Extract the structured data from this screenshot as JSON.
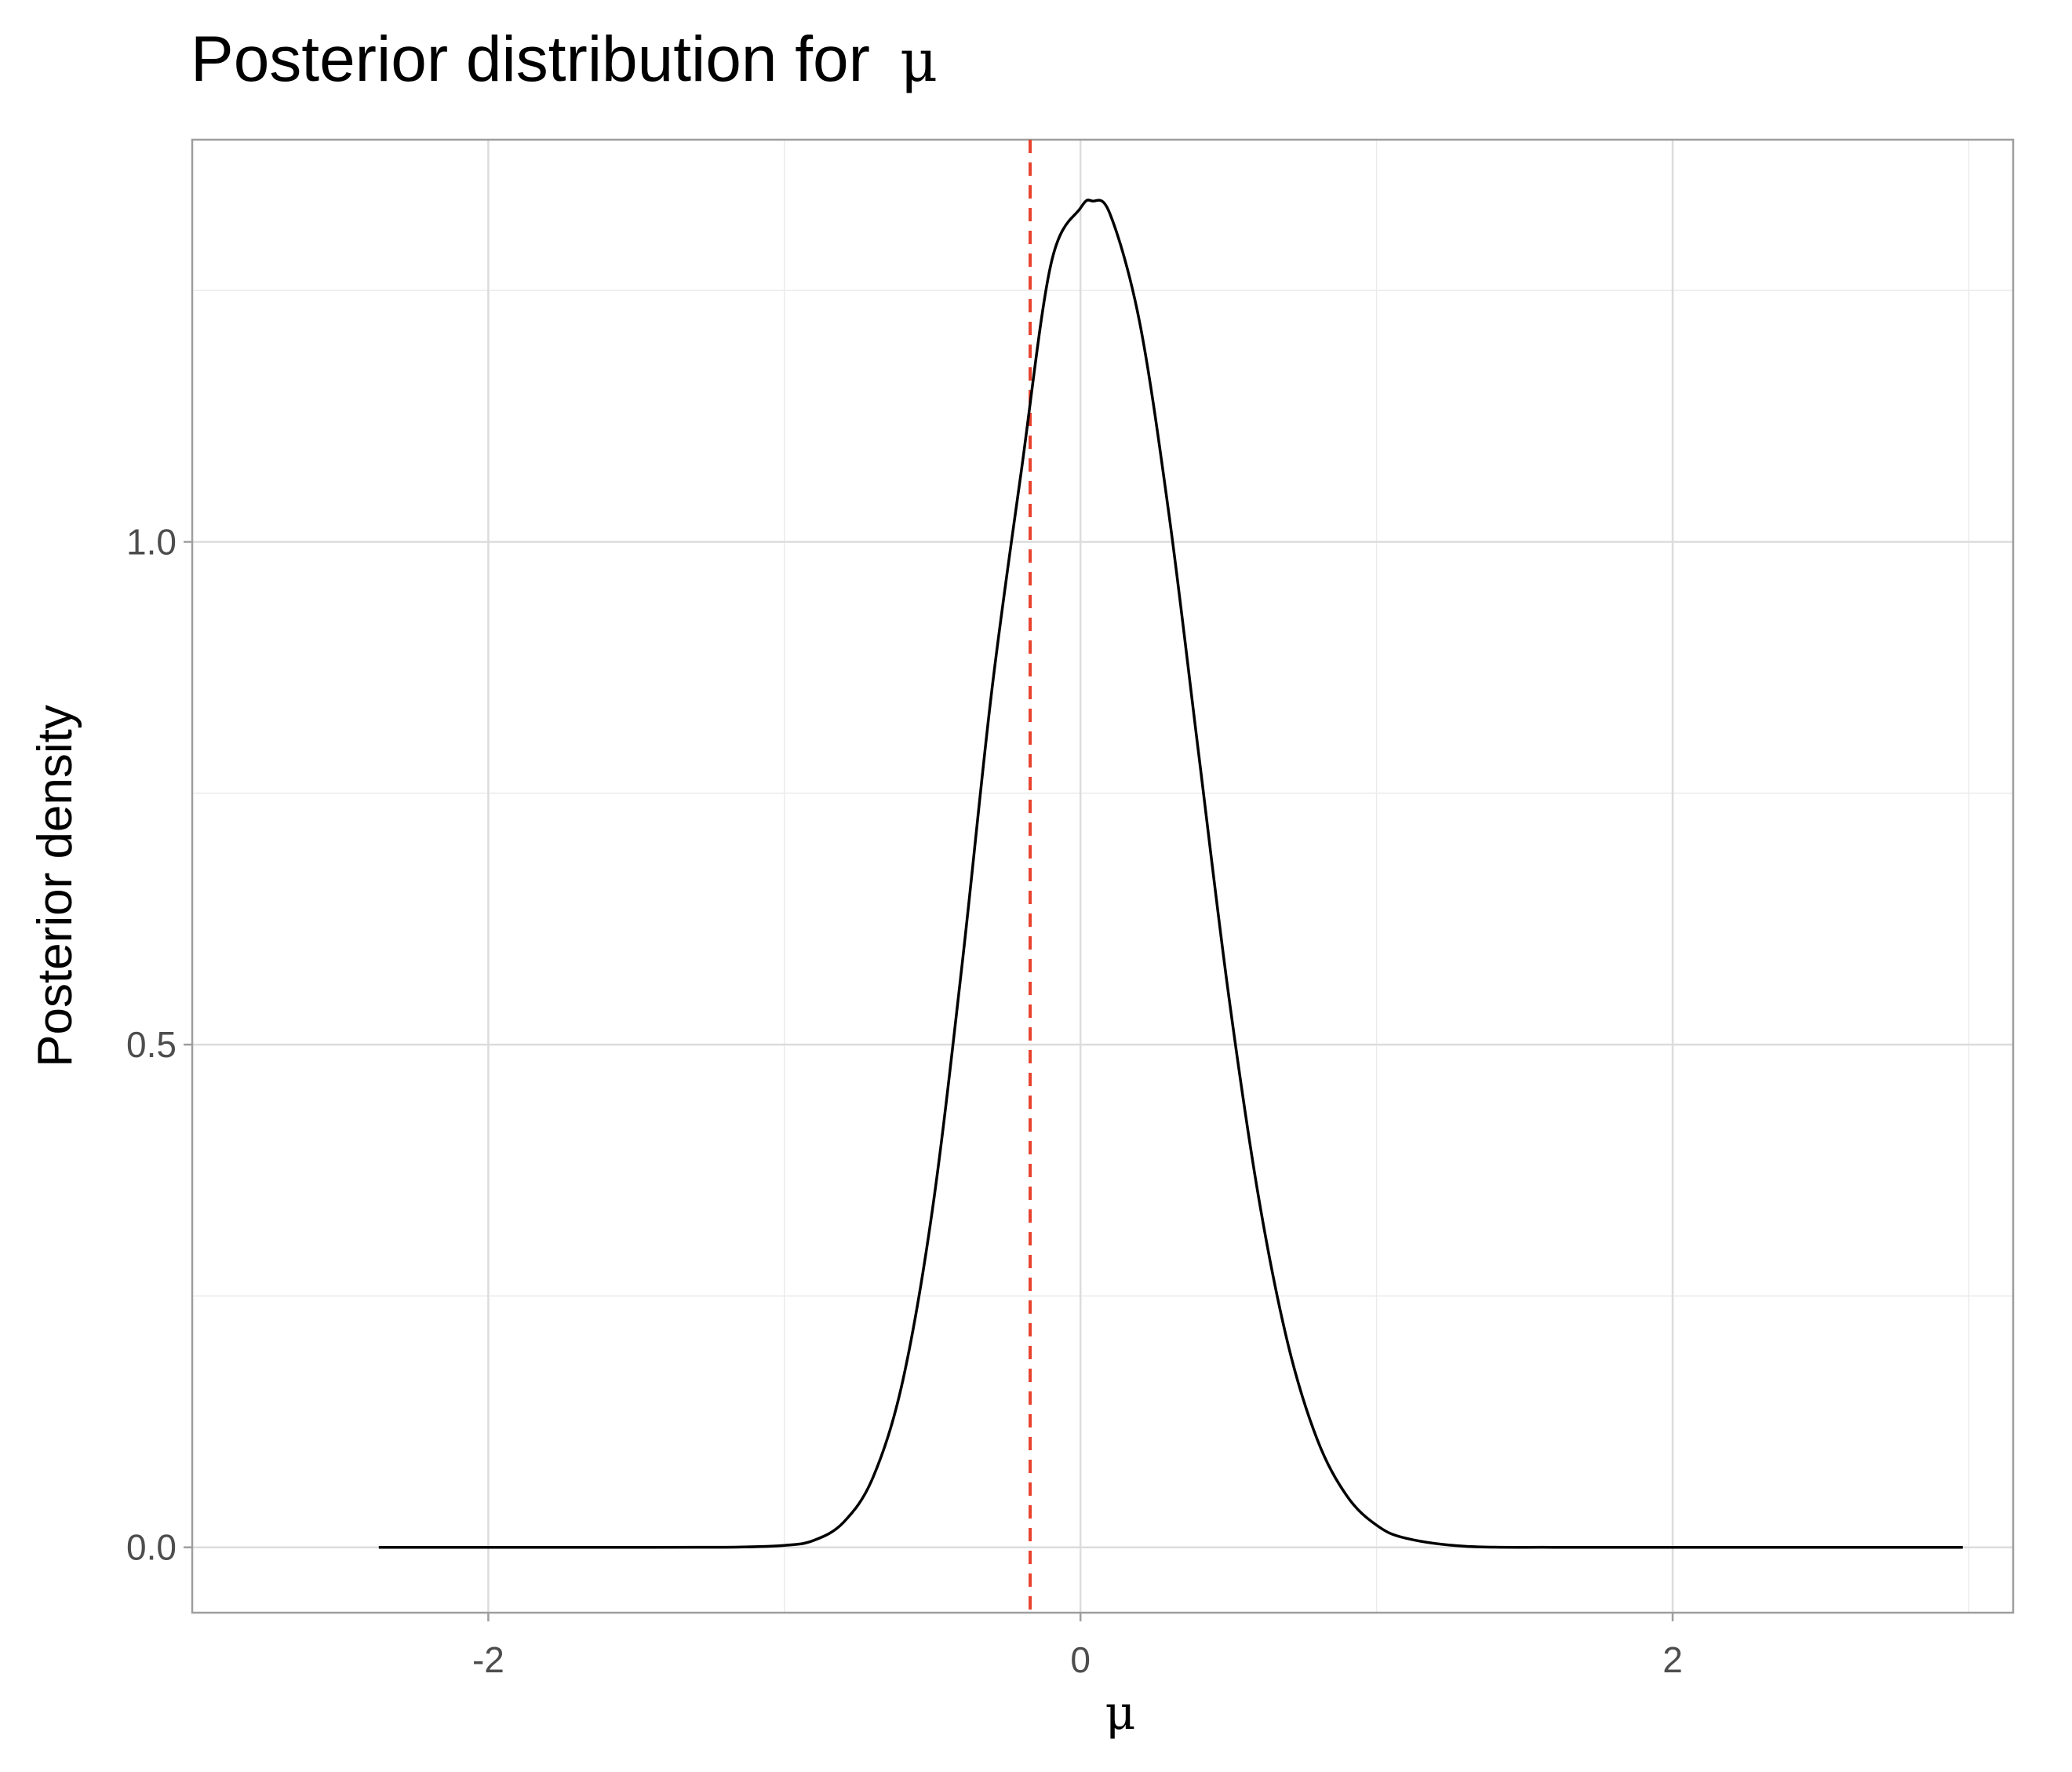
{
  "chart_data": {
    "type": "line",
    "title": "Posterior distribution for",
    "title_symbol": "μ",
    "xlabel": "μ",
    "ylabel": "Posterior density",
    "xlim": [
      -3.0,
      3.15
    ],
    "ylim": [
      -0.065,
      1.4
    ],
    "x_ticks": [
      -2,
      0,
      2
    ],
    "x_tick_labels": [
      "-2",
      "0",
      "2"
    ],
    "x_minor_ticks": [
      -3,
      -1,
      1,
      3
    ],
    "y_ticks": [
      0.0,
      0.5,
      1.0
    ],
    "y_tick_labels": [
      "0.0",
      "0.5",
      "1.0"
    ],
    "y_minor_ticks": [
      0.25,
      0.75,
      1.25
    ],
    "grid": true,
    "legend": "none",
    "series": [
      {
        "color": "#000000",
        "x": [
          -2.37,
          -2.0,
          -1.6,
          -1.2,
          -1.0,
          -0.9,
          -0.8,
          -0.7,
          -0.6,
          -0.5,
          -0.4,
          -0.3,
          -0.2,
          -0.1,
          0.0,
          0.04,
          0.1,
          0.2,
          0.3,
          0.4,
          0.5,
          0.6,
          0.7,
          0.8,
          0.9,
          1.0,
          1.1,
          1.3,
          1.6,
          2.0,
          2.5,
          2.98
        ],
        "y": [
          0.0,
          0.0,
          0.0,
          0.0001,
          0.002,
          0.007,
          0.025,
          0.07,
          0.166,
          0.336,
          0.579,
          0.851,
          1.07,
          1.276,
          1.332,
          1.339,
          1.326,
          1.218,
          1.025,
          0.787,
          0.55,
          0.351,
          0.203,
          0.107,
          0.051,
          0.022,
          0.009,
          0.001,
          0.0,
          0.0,
          0.0,
          0.0
        ]
      }
    ],
    "reference_line": {
      "x": -0.17,
      "color": "#e8432e",
      "style": "dashed"
    }
  }
}
